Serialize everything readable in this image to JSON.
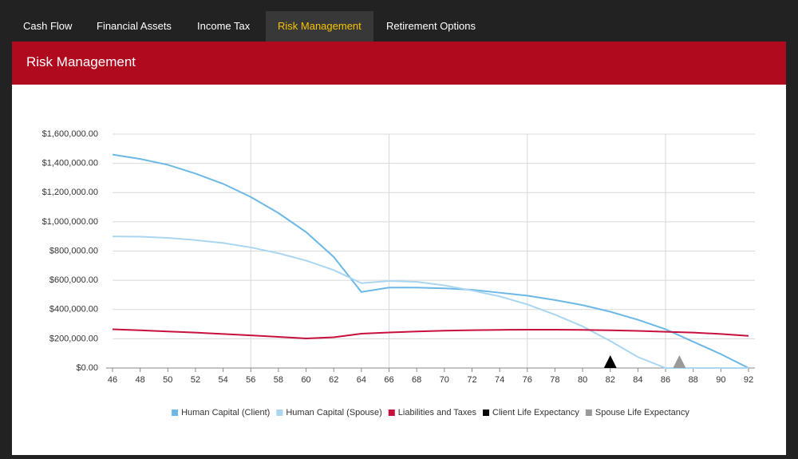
{
  "tabs": [
    "Cash Flow",
    "Financial Assets",
    "Income Tax",
    "Risk Management",
    "Retirement Options"
  ],
  "active_tab": 3,
  "panel": {
    "title": "Risk Management"
  },
  "chart_data": {
    "type": "line",
    "x": [
      46,
      48,
      50,
      52,
      54,
      56,
      58,
      60,
      62,
      64,
      66,
      68,
      70,
      72,
      74,
      76,
      78,
      80,
      82,
      84,
      86,
      88,
      90,
      92
    ],
    "series": [
      {
        "name": "Human Capital (Client)",
        "color": "#6cb8e6",
        "values": [
          1460000,
          1430000,
          1390000,
          1330000,
          1260000,
          1170000,
          1060000,
          930000,
          760000,
          520000,
          550000,
          550000,
          545000,
          535000,
          515000,
          495000,
          465000,
          430000,
          385000,
          330000,
          265000,
          180000,
          95000,
          0
        ]
      },
      {
        "name": "Human Capital (Spouse)",
        "color": "#a9d6f0",
        "values": [
          900000,
          898000,
          890000,
          875000,
          855000,
          825000,
          785000,
          735000,
          670000,
          580000,
          595000,
          590000,
          565000,
          530000,
          490000,
          435000,
          365000,
          285000,
          185000,
          75000,
          0,
          0,
          0,
          0
        ]
      },
      {
        "name": "Liabilities and Taxes",
        "color": "#c8103e",
        "values": [
          265000,
          258000,
          250000,
          242000,
          233000,
          223000,
          213000,
          202000,
          210000,
          235000,
          243000,
          250000,
          255000,
          259000,
          261000,
          262000,
          262000,
          261000,
          258000,
          254000,
          248000,
          242000,
          233000,
          220000
        ]
      }
    ],
    "markers": [
      {
        "name": "Client Life Expectancy",
        "color": "#000000",
        "x": 82,
        "y": 0
      },
      {
        "name": "Spouse Life Expectancy",
        "color": "#999999",
        "x": 87,
        "y": 0
      }
    ],
    "xlim": [
      46,
      92
    ],
    "xticks": [
      46,
      48,
      50,
      52,
      54,
      56,
      58,
      60,
      62,
      64,
      66,
      68,
      70,
      72,
      74,
      76,
      78,
      80,
      82,
      84,
      86,
      88,
      90,
      92
    ],
    "ylim": [
      0,
      1600000
    ],
    "yticks": [
      {
        "value": 0,
        "label": "$0.00"
      },
      {
        "value": 200000,
        "label": "$200,000.00"
      },
      {
        "value": 400000,
        "label": "$400,000.00"
      },
      {
        "value": 600000,
        "label": "$600,000.00"
      },
      {
        "value": 800000,
        "label": "$800,000.00"
      },
      {
        "value": 1000000,
        "label": "$1,000,000.00"
      },
      {
        "value": 1200000,
        "label": "$1,200,000.00"
      },
      {
        "value": 1400000,
        "label": "$1,400,000.00"
      },
      {
        "value": 1600000,
        "label": "$1,600,000.00"
      }
    ],
    "grid": true,
    "legend": "bottom"
  }
}
